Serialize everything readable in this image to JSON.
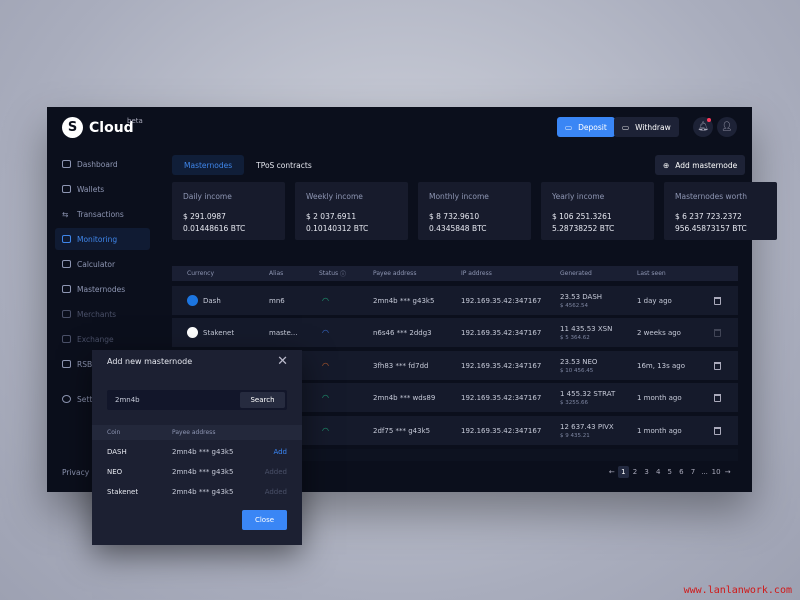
{
  "app": {
    "name": "Cloud",
    "badge": "beta"
  },
  "header": {
    "deposit": "Deposit",
    "withdraw": "Withdraw"
  },
  "sidebar": {
    "items": [
      {
        "label": "Dashboard",
        "state": "normal"
      },
      {
        "label": "Wallets",
        "state": "normal"
      },
      {
        "label": "Transactions",
        "state": "normal"
      },
      {
        "label": "Monitoring",
        "state": "active"
      },
      {
        "label": "Calculator",
        "state": "normal"
      },
      {
        "label": "Masternodes",
        "state": "normal"
      },
      {
        "label": "Merchants",
        "state": "disabled"
      },
      {
        "label": "Exchange",
        "state": "disabled"
      },
      {
        "label": "RSB",
        "state": "normal"
      },
      {
        "label": "Settings",
        "state": "normal"
      }
    ],
    "footer": "Privacy"
  },
  "tabs": [
    "Masternodes",
    "TPoS contracts"
  ],
  "add_masternode": "Add masternode",
  "cards": [
    {
      "title": "Daily income",
      "usd": "$ 291.0987",
      "btc": "0.01448616 BTC"
    },
    {
      "title": "Weekly income",
      "usd": "$ 2 037.6911",
      "btc": "0.10140312 BTC"
    },
    {
      "title": "Monthly income",
      "usd": "$ 8 732.9610",
      "btc": "0.4345848 BTC"
    },
    {
      "title": "Yearly income",
      "usd": "$ 106 251.3261",
      "btc": "5.28738252 BTC"
    },
    {
      "title": "Masternodes worth",
      "usd": "$ 6 237 723.2372",
      "btc": "956.45873157 BTC"
    }
  ],
  "table": {
    "headers": [
      "Currency",
      "Alias",
      "Status",
      "Payee address",
      "IP address",
      "Generated",
      "Last seen"
    ],
    "rows": [
      {
        "currency": "Dash",
        "alias": "mn6",
        "status": "online",
        "payee": "2mn4b *** g43k5",
        "ip": "192.169.35.42:347167",
        "gen": "23.53 DASH",
        "gen_usd": "$ 4562.54",
        "seen": "1 day ago",
        "icon_color": "#1c75e0"
      },
      {
        "currency": "Stakenet",
        "alias": "maste...",
        "status": "syncing",
        "payee": "n6s46 *** 2ddg3",
        "ip": "192.169.35.42:347167",
        "gen": "11 435.53 XSN",
        "gen_usd": "$ 5 364.62",
        "seen": "2 weeks ago",
        "icon_color": "#ffffff"
      },
      {
        "currency": "",
        "alias": "",
        "status": "offline",
        "payee": "3fh83 *** fd7dd",
        "ip": "192.169.35.42:347167",
        "gen": "23.53 NEO",
        "gen_usd": "$ 10 456.45",
        "seen": "16m, 13s ago",
        "icon_color": ""
      },
      {
        "currency": "",
        "alias": "",
        "status": "online",
        "payee": "2mn4b *** wds89",
        "ip": "192.169.35.42:347167",
        "gen": "1 455.32 STRAT",
        "gen_usd": "$ 3255.66",
        "seen": "1 month ago",
        "icon_color": ""
      },
      {
        "currency": "",
        "alias": "",
        "status": "online",
        "payee": "2df75 *** g43k5",
        "ip": "192.169.35.42:347167",
        "gen": "12 637.43 PIVX",
        "gen_usd": "$ 9 435.21",
        "seen": "1 month ago",
        "icon_color": ""
      }
    ]
  },
  "pagination": {
    "prev": "←",
    "pages": [
      "1",
      "2",
      "3",
      "4",
      "5",
      "6",
      "7",
      "...",
      "10"
    ],
    "current": "1",
    "next": "→"
  },
  "modal": {
    "title": "Add new masternode",
    "input": "2mn4b",
    "search": "Search",
    "headers": [
      "Coin",
      "Payee address"
    ],
    "rows": [
      {
        "coin": "DASH",
        "payee": "2mn4b *** g43k5",
        "action": "Add"
      },
      {
        "coin": "NEO",
        "payee": "2mn4b *** g43k5",
        "action": "Added"
      },
      {
        "coin": "Stakenet",
        "payee": "2mn4b *** g43k5",
        "action": "Added"
      }
    ],
    "close": "Close"
  },
  "watermark": "www.lanlanwork.com",
  "colors": {
    "accent": "#3a86f5",
    "online": "#1fa67a",
    "syncing": "#3a6fd8",
    "offline": "#c4602a",
    "notification": "#ff3b5c"
  }
}
